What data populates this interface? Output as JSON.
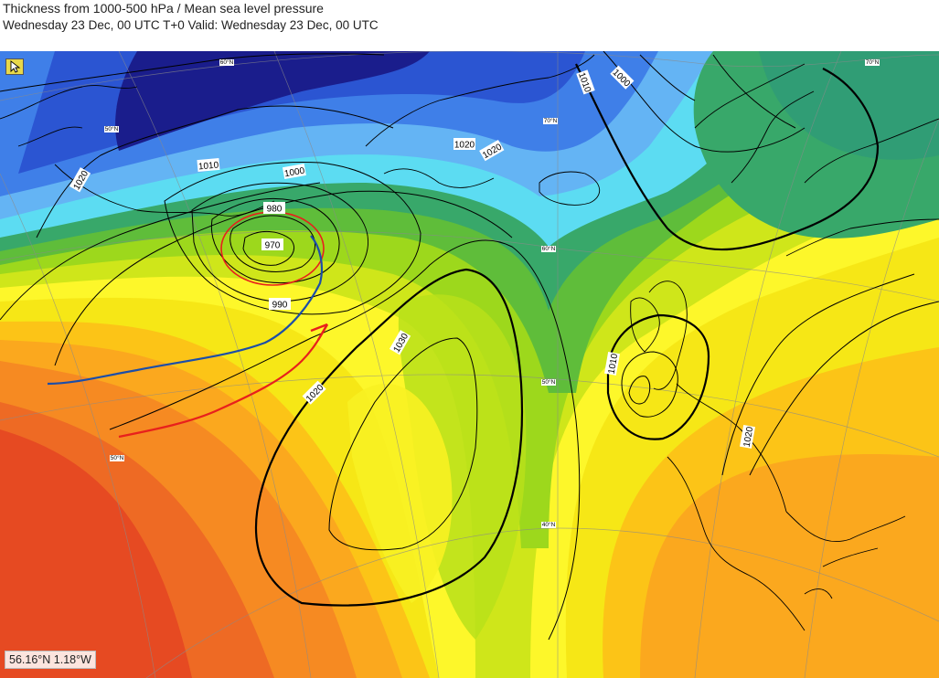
{
  "header": {
    "title": "Thickness from 1000-500 hPa / Mean sea level pressure",
    "subtitle": "Wednesday 23 Dec, 00 UTC T+0 Valid: Wednesday 23 Dec, 00 UTC"
  },
  "cursor_readout": "56.16°N 1.18°W",
  "tool_icon": "pointer-icon",
  "isobar_labels": [
    "1010",
    "1020",
    "1000",
    "1020",
    "1010",
    "1000",
    "980",
    "970",
    "990",
    "1030",
    "1020",
    "1010",
    "1020",
    "1020"
  ],
  "lat_labels": [
    "60°N",
    "50°N",
    "70°N",
    "60°N",
    "50°N",
    "40°N",
    "70°N",
    "50°N"
  ],
  "colors": {
    "thickness_low": "#1a1d8c",
    "thickness_high": "#e8391c",
    "warm_front": "#e8201c",
    "cold_front": "#1c4ea8",
    "low_circle": "#e8201c"
  }
}
